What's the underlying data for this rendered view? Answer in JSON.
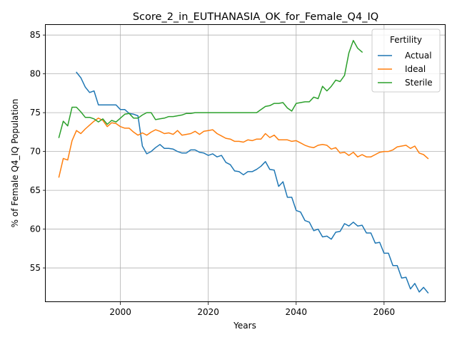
{
  "chart_data": {
    "type": "line",
    "title": "Score_2_in_EUTHANASIA_OK_for_Female_Q4_IQ",
    "xlabel": "Years",
    "ylabel": "% of Female Q4_IQ Population",
    "xlim": [
      1983,
      2074
    ],
    "ylim": [
      50.6,
      86.3
    ],
    "xticks": [
      2000,
      2020,
      2040,
      2060
    ],
    "yticks": [
      55,
      60,
      65,
      70,
      75,
      80,
      85
    ],
    "grid": true,
    "legend": {
      "title": "Fertility",
      "position": "top-right"
    },
    "series": [
      {
        "name": "Actual",
        "color": "#1f77b4",
        "x": [
          1990,
          1991,
          1992,
          1993,
          1994,
          1995,
          1996,
          1997,
          1998,
          1999,
          2000,
          2001,
          2002,
          2003,
          2004,
          2005,
          2006,
          2007,
          2008,
          2009,
          2010,
          2011,
          2012,
          2013,
          2014,
          2015,
          2016,
          2017,
          2018,
          2019,
          2020,
          2021,
          2022,
          2023,
          2024,
          2025,
          2026,
          2027,
          2028,
          2029,
          2030,
          2031,
          2032,
          2033,
          2034,
          2035,
          2036,
          2037,
          2038,
          2039,
          2040,
          2041,
          2042,
          2043,
          2044,
          2045,
          2046,
          2047,
          2048,
          2049,
          2050,
          2051,
          2052,
          2053,
          2054,
          2055,
          2056,
          2057,
          2058,
          2059,
          2060,
          2061,
          2062,
          2063,
          2064,
          2065,
          2066,
          2067,
          2068,
          2069,
          2070
        ],
        "values": [
          80.2,
          79.5,
          78.3,
          77.6,
          77.8,
          76.0,
          76.0,
          76.0,
          76.0,
          76.0,
          75.4,
          75.4,
          74.9,
          74.8,
          74.6,
          70.7,
          69.7,
          70.0,
          70.5,
          70.9,
          70.4,
          70.4,
          70.3,
          70.0,
          69.8,
          69.8,
          70.2,
          70.2,
          69.9,
          69.8,
          69.5,
          69.7,
          69.3,
          69.5,
          68.6,
          68.3,
          67.5,
          67.4,
          67.0,
          67.4,
          67.4,
          67.7,
          68.1,
          68.7,
          67.7,
          67.6,
          65.5,
          66.1,
          64.1,
          64.1,
          62.4,
          62.2,
          61.1,
          60.9,
          59.8,
          60.0,
          59.0,
          59.1,
          58.7,
          59.6,
          59.7,
          60.7,
          60.4,
          60.9,
          60.4,
          60.5,
          59.5,
          59.5,
          58.2,
          58.3,
          56.9,
          56.9,
          55.3,
          55.3,
          53.7,
          53.8,
          52.3,
          53.0,
          51.9,
          52.5,
          51.8
        ]
      },
      {
        "name": "Ideal",
        "color": "#ff7f0e",
        "x": [
          1986,
          1987,
          1988,
          1989,
          1990,
          1991,
          1992,
          1993,
          1994,
          1995,
          1996,
          1997,
          1998,
          1999,
          2000,
          2001,
          2002,
          2003,
          2004,
          2005,
          2006,
          2007,
          2008,
          2009,
          2010,
          2011,
          2012,
          2013,
          2014,
          2015,
          2016,
          2017,
          2018,
          2019,
          2020,
          2021,
          2022,
          2023,
          2024,
          2025,
          2026,
          2027,
          2028,
          2029,
          2030,
          2031,
          2032,
          2033,
          2034,
          2035,
          2036,
          2037,
          2038,
          2039,
          2040,
          2041,
          2042,
          2043,
          2044,
          2045,
          2046,
          2047,
          2048,
          2049,
          2050,
          2051,
          2052,
          2053,
          2054,
          2055,
          2056,
          2057,
          2058,
          2059,
          2060,
          2061,
          2062,
          2063,
          2064,
          2065,
          2066,
          2067,
          2068,
          2069,
          2070
        ],
        "values": [
          66.7,
          69.1,
          68.9,
          71.4,
          72.7,
          72.3,
          72.9,
          73.4,
          73.9,
          74.3,
          74.0,
          73.2,
          73.7,
          73.6,
          73.2,
          73.0,
          73.0,
          72.5,
          72.1,
          72.4,
          72.1,
          72.5,
          72.8,
          72.6,
          72.3,
          72.4,
          72.2,
          72.7,
          72.1,
          72.2,
          72.3,
          72.6,
          72.2,
          72.6,
          72.7,
          72.8,
          72.3,
          72.0,
          71.7,
          71.6,
          71.3,
          71.3,
          71.2,
          71.5,
          71.4,
          71.6,
          71.6,
          72.3,
          71.8,
          72.1,
          71.5,
          71.5,
          71.5,
          71.3,
          71.4,
          71.1,
          70.8,
          70.6,
          70.5,
          70.8,
          70.9,
          70.8,
          70.3,
          70.5,
          69.8,
          69.9,
          69.5,
          69.9,
          69.3,
          69.6,
          69.3,
          69.3,
          69.6,
          69.9,
          70.0,
          70.0,
          70.2,
          70.6,
          70.7,
          70.8,
          70.4,
          70.7,
          69.8,
          69.6,
          69.1
        ]
      },
      {
        "name": "Sterile",
        "color": "#2ca02c",
        "x": [
          1986,
          1987,
          1988,
          1989,
          1990,
          1991,
          1992,
          1993,
          1994,
          1995,
          1996,
          1997,
          1998,
          1999,
          2000,
          2001,
          2002,
          2003,
          2004,
          2005,
          2006,
          2007,
          2008,
          2009,
          2010,
          2011,
          2012,
          2013,
          2014,
          2015,
          2016,
          2017,
          2018,
          2019,
          2020,
          2021,
          2022,
          2023,
          2024,
          2025,
          2026,
          2027,
          2028,
          2029,
          2030,
          2031,
          2032,
          2033,
          2034,
          2035,
          2036,
          2037,
          2038,
          2039,
          2040,
          2041,
          2042,
          2043,
          2044,
          2045,
          2046,
          2047,
          2048,
          2049,
          2050,
          2051,
          2052,
          2053,
          2054,
          2055
        ],
        "values": [
          71.8,
          73.9,
          73.3,
          75.7,
          75.7,
          75.1,
          74.4,
          74.4,
          74.2,
          73.8,
          74.2,
          73.5,
          74.0,
          73.8,
          74.3,
          74.8,
          74.9,
          74.3,
          74.3,
          74.7,
          75.0,
          75.0,
          74.1,
          74.2,
          74.3,
          74.5,
          74.5,
          74.6,
          74.7,
          74.9,
          74.9,
          75.0,
          75.0,
          75.0,
          75.0,
          75.0,
          75.0,
          75.0,
          75.0,
          75.0,
          75.0,
          75.0,
          75.0,
          75.0,
          75.0,
          75.0,
          75.4,
          75.8,
          75.9,
          76.2,
          76.2,
          76.3,
          75.6,
          75.2,
          76.2,
          76.3,
          76.4,
          76.4,
          77.0,
          76.8,
          78.4,
          77.8,
          78.4,
          79.2,
          79.0,
          79.8,
          82.7,
          84.3,
          83.3,
          82.8
        ]
      }
    ]
  }
}
